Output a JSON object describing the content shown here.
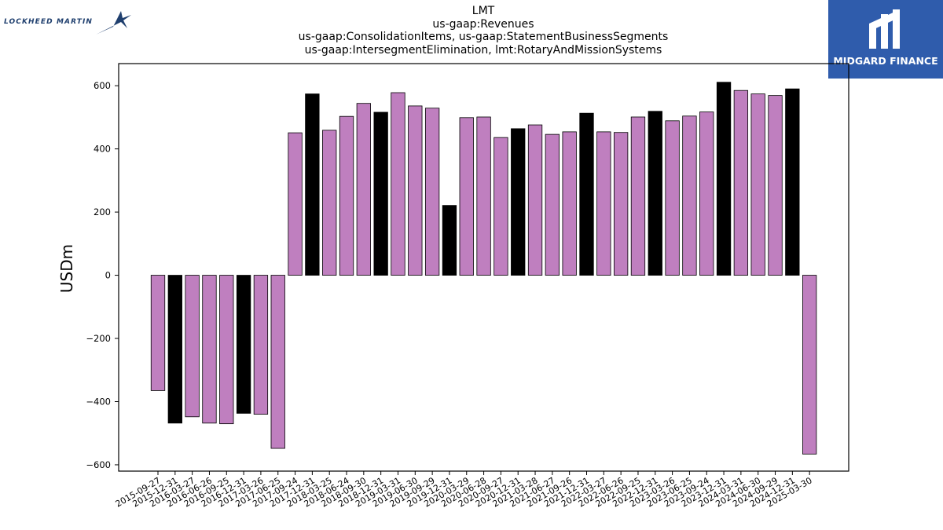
{
  "logos": {
    "left_logo_text": "LOCKHEED MARTIN",
    "right_logo_text": "MIDGARD FINANCE"
  },
  "chart_data": {
    "type": "bar",
    "title_lines": [
      "LMT",
      "us-gaap:Revenues",
      "us-gaap:ConsolidationItems, us-gaap:StatementBusinessSegments",
      "us-gaap:IntersegmentElimination, lmt:RotaryAndMissionSystems"
    ],
    "ylabel": "USDm",
    "xlabel": "",
    "ylim": [
      -620,
      670
    ],
    "yticks": [
      -600,
      -400,
      -200,
      0,
      200,
      400,
      600
    ],
    "grid": false,
    "colors": {
      "quarter": "#bf7fbf",
      "year_end": "#000000"
    },
    "categories": [
      "2015-09-27",
      "2015-12-31",
      "2016-03-27",
      "2016-06-26",
      "2016-09-25",
      "2016-12-31",
      "2017-03-26",
      "2017-06-25",
      "2017-09-24",
      "2017-12-31",
      "2018-03-25",
      "2018-06-24",
      "2018-09-30",
      "2018-12-31",
      "2019-03-31",
      "2019-06-30",
      "2019-09-29",
      "2019-12-31",
      "2020-03-29",
      "2020-06-28",
      "2020-09-27",
      "2020-12-31",
      "2021-03-28",
      "2021-06-27",
      "2021-09-26",
      "2021-12-31",
      "2022-03-27",
      "2022-06-26",
      "2022-09-25",
      "2022-12-31",
      "2023-03-26",
      "2023-06-25",
      "2023-09-24",
      "2023-12-31",
      "2024-03-31",
      "2024-06-30",
      "2024-09-29",
      "2024-12-31",
      "2025-03-30"
    ],
    "values": [
      -365,
      -468,
      -448,
      -468,
      -470,
      -437,
      -440,
      -548,
      451,
      574,
      459,
      503,
      544,
      516,
      578,
      536,
      529,
      221,
      499,
      501,
      436,
      464,
      476,
      446,
      454,
      513,
      454,
      452,
      501,
      519,
      489,
      504,
      517,
      611,
      585,
      574,
      569,
      590,
      -566
    ],
    "year_end_flags": [
      false,
      true,
      false,
      false,
      false,
      true,
      false,
      false,
      false,
      true,
      false,
      false,
      false,
      true,
      false,
      false,
      false,
      true,
      false,
      false,
      false,
      true,
      false,
      false,
      false,
      true,
      false,
      false,
      false,
      true,
      false,
      false,
      false,
      true,
      false,
      false,
      false,
      true,
      false
    ]
  }
}
